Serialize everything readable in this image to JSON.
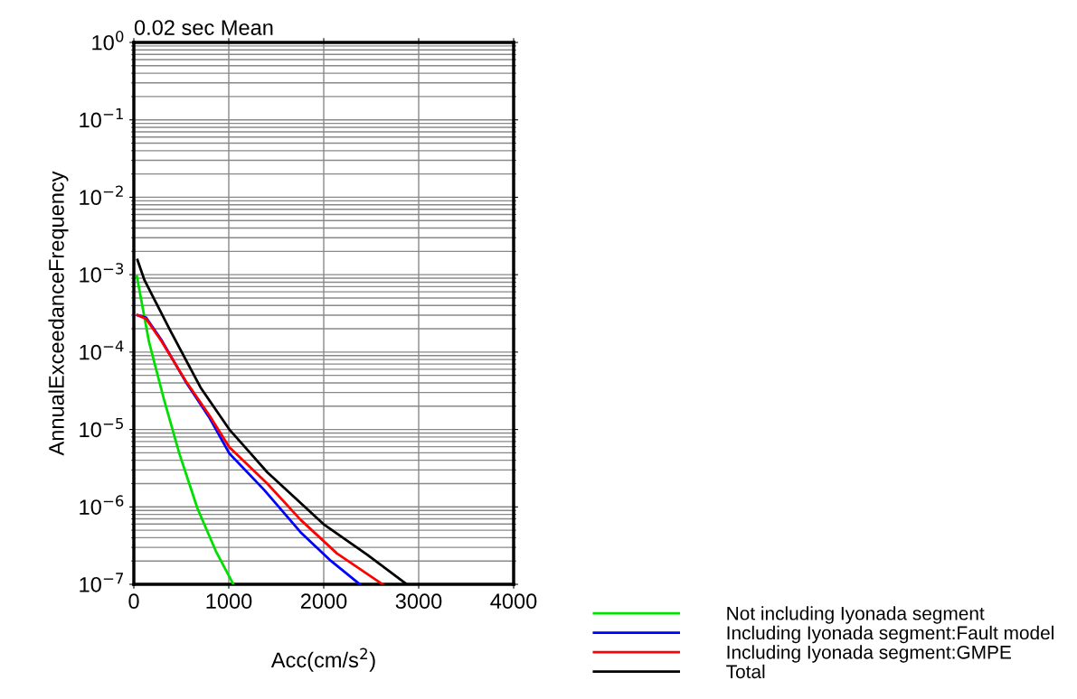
{
  "chart_data": {
    "type": "line",
    "title": "0.02 sec Mean",
    "xlabel": "Acc(cm/s$^{2}$)",
    "ylabel": "AnnualExceedanceFrequency",
    "log": "y",
    "grid": true,
    "legend": "bottom right",
    "marker": "none",
    "line_style": "solid",
    "xlim": [
      0,
      4000
    ],
    "xticks": [
      0,
      1000,
      2000,
      3000,
      4000
    ],
    "ylim": [
      1e-07,
      1
    ],
    "yticks": [
      {
        "value": 1e-07,
        "label": "10$^{−7}$"
      },
      {
        "value": 1e-06,
        "label": "10$^{−6}$"
      },
      {
        "value": 1e-05,
        "label": "10$^{−5}$"
      },
      {
        "value": 0.0001,
        "label": "10$^{−4}$"
      },
      {
        "value": 0.001,
        "label": "10$^{−3}$"
      },
      {
        "value": 0.01,
        "label": "10$^{−2}$"
      },
      {
        "value": 0.1,
        "label": "10$^{−1}$"
      },
      {
        "value": 1,
        "label": "10$^{0}$"
      }
    ],
    "series": [
      {
        "name": "Not including Iyonada segment",
        "color": "#00e000",
        "x": [
          32,
          160,
          319,
          479,
          671,
          863,
          1048
        ],
        "values": [
          0.00095,
          0.000135,
          2.4e-05,
          4.9e-06,
          9.5e-07,
          2.7e-07,
          1e-07
        ]
      },
      {
        "name": "Including Iyonada segment:Fault model",
        "color": "#0000ff",
        "x": [
          38,
          128,
          288,
          543,
          799,
          1006,
          1374,
          1757,
          2077,
          2380
        ],
        "values": [
          0.0003,
          0.00028,
          0.000145,
          4.2e-05,
          1.4e-05,
          4.9e-06,
          1.65e-06,
          4.7e-07,
          2e-07,
          1e-07
        ]
      },
      {
        "name": "Including Iyonada segment:GMPE",
        "color": "#ff0000",
        "x": [
          38,
          128,
          288,
          543,
          799,
          1006,
          1406,
          1757,
          2140,
          2620
        ],
        "values": [
          0.0003,
          0.00027,
          0.00014,
          4.3e-05,
          1.5e-05,
          5.9e-06,
          2e-06,
          6.8e-07,
          2.5e-07,
          1e-07
        ]
      },
      {
        "name": "Total",
        "color": "#000000",
        "x": [
          38,
          112,
          383,
          702,
          1006,
          1406,
          1997,
          2460,
          2875
        ],
        "values": [
          0.00155,
          0.00085,
          0.00019,
          3.5e-05,
          1e-05,
          2.8e-06,
          6e-07,
          2.4e-07,
          1e-07
        ]
      }
    ]
  }
}
